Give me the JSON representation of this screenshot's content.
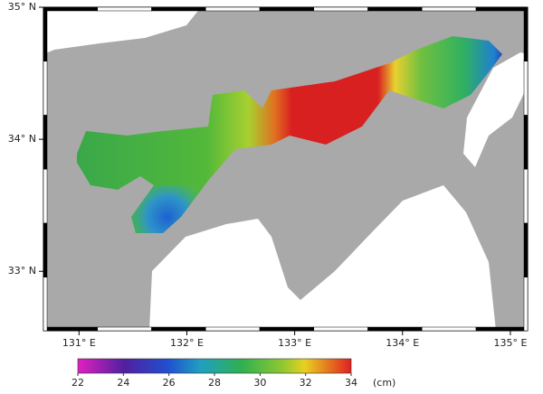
{
  "map": {
    "lonlim": [
      130.67,
      135.16
    ],
    "latlim": [
      32.55,
      35
    ],
    "lon_ticks": [
      {
        "value": 131,
        "label": "131° E"
      },
      {
        "value": 132,
        "label": "132° E"
      },
      {
        "value": 133,
        "label": "133° E"
      },
      {
        "value": 134,
        "label": "134° E"
      },
      {
        "value": 135,
        "label": "135° E"
      }
    ],
    "lat_ticks": [
      {
        "value": 35,
        "label": "35° N"
      },
      {
        "value": 34,
        "label": "34° N"
      },
      {
        "value": 33,
        "label": "33° N"
      }
    ]
  },
  "colorbar": {
    "lim": [
      22,
      34
    ],
    "ticks": [
      22,
      24,
      26,
      28,
      30,
      32,
      34
    ],
    "unit": "(cm)"
  }
}
